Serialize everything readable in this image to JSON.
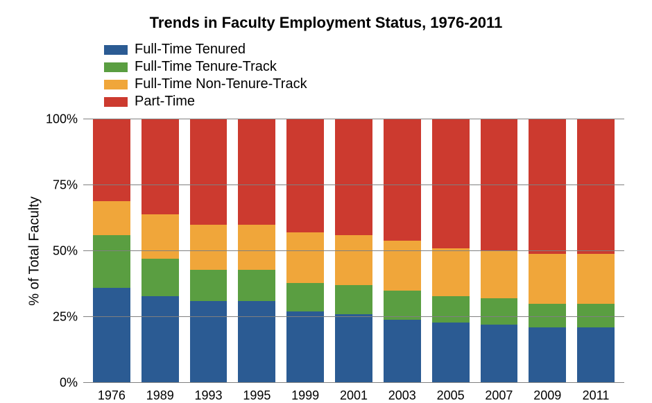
{
  "chart": {
    "type": "stacked-bar-100",
    "title": "Trends in Faculty Employment Status, 1976-2011",
    "title_fontsize": 22,
    "title_fontweight": "bold",
    "ylabel": "% of Total Faculty",
    "ylabel_fontsize": 20,
    "ylim": [
      0,
      100
    ],
    "ytick_step": 25,
    "yticks": [
      "0%",
      "25%",
      "50%",
      "75%",
      "100%"
    ],
    "categories": [
      "1976",
      "1989",
      "1993",
      "1995",
      "1999",
      "2001",
      "2003",
      "2005",
      "2007",
      "2009",
      "2011"
    ],
    "series": [
      {
        "name": "Full-Time Tenured",
        "color": "#2b5b93"
      },
      {
        "name": "Full-Time Tenure-Track",
        "color": "#5a9e41"
      },
      {
        "name": "Full-Time Non-Tenure-Track",
        "color": "#f0a63a"
      },
      {
        "name": "Part-Time",
        "color": "#cc3a2f"
      }
    ],
    "values": [
      [
        36,
        20,
        13,
        31
      ],
      [
        33,
        14,
        17,
        36
      ],
      [
        31,
        12,
        17,
        40
      ],
      [
        31,
        12,
        17,
        40
      ],
      [
        27,
        11,
        19,
        43
      ],
      [
        26,
        11,
        19,
        44
      ],
      [
        24,
        11,
        19,
        46
      ],
      [
        23,
        10,
        18,
        49
      ],
      [
        22,
        10,
        18,
        50
      ],
      [
        21,
        9,
        19,
        51
      ],
      [
        21,
        9,
        19,
        51
      ]
    ],
    "background_color": "#ffffff",
    "grid_color": "#808080",
    "axis_fontsize": 18,
    "legend_fontsize": 20,
    "bar_gap_ratio": 0.22
  }
}
